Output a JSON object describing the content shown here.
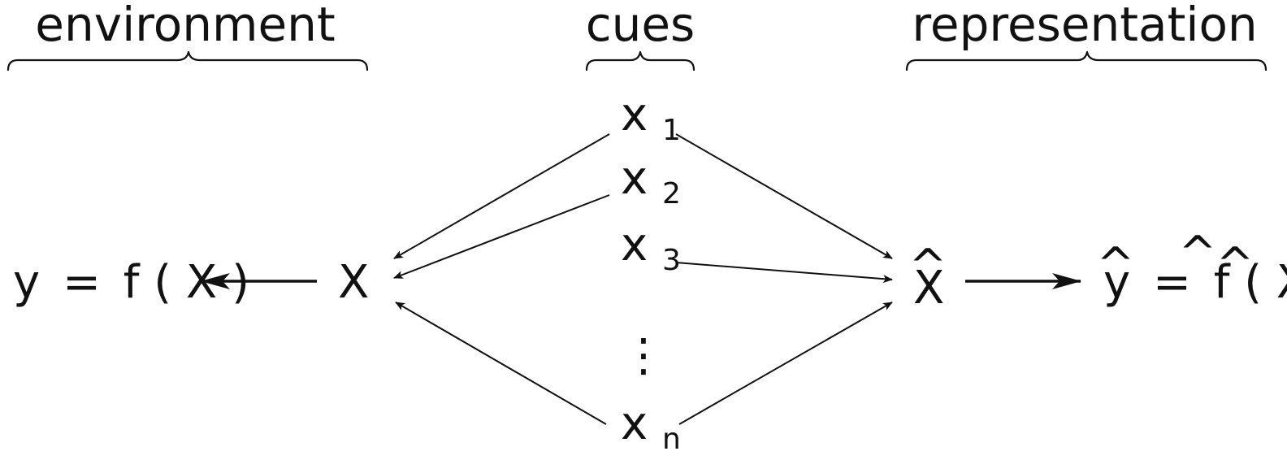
{
  "headings": {
    "environment": "environment",
    "cues": "cues",
    "representation": "representation"
  },
  "environment": {
    "equation_y": "y",
    "equals": "=",
    "equation_f": "f",
    "open_paren": "(",
    "equation_X": "X",
    "close_paren": ")",
    "node": "X"
  },
  "cues": {
    "x_symbol": "x",
    "sub1": "1",
    "sub2": "2",
    "sub3": "3",
    "subn": "n",
    "ellipsis": "⋮"
  },
  "representation": {
    "node": "X",
    "hat": "^",
    "equation_y": "y",
    "equals": "=",
    "equation_f": "f",
    "open_paren": "(",
    "equation_X": "X",
    "close_paren": ")"
  }
}
